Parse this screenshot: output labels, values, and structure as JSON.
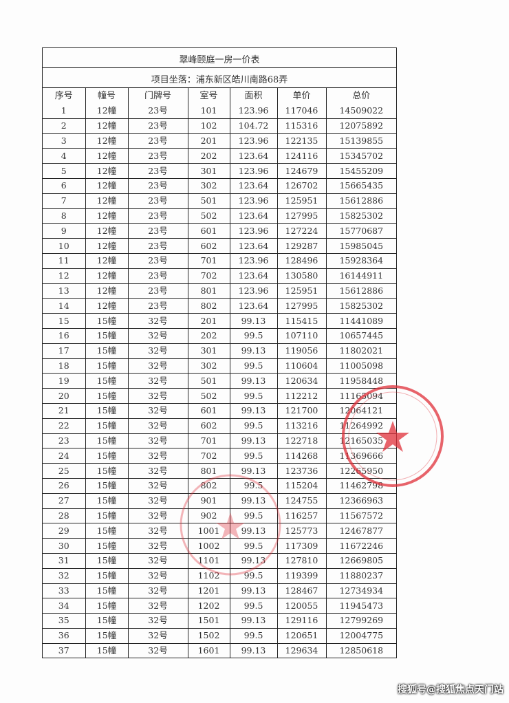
{
  "document": {
    "title": "翠峰颐庭一房一价表",
    "location": "项目坐落：浦东新区皓川南路68弄",
    "columns": [
      "序号",
      "幢号",
      "门牌号",
      "室号",
      "面积",
      "单价",
      "总价"
    ],
    "rows": [
      [
        "1",
        "12幢",
        "23号",
        "101",
        "123.96",
        "117046",
        "14509022"
      ],
      [
        "2",
        "12幢",
        "23号",
        "102",
        "104.72",
        "115316",
        "12075892"
      ],
      [
        "3",
        "12幢",
        "23号",
        "201",
        "123.96",
        "122135",
        "15139855"
      ],
      [
        "4",
        "12幢",
        "23号",
        "202",
        "123.64",
        "124116",
        "15345702"
      ],
      [
        "5",
        "12幢",
        "23号",
        "301",
        "123.96",
        "124679",
        "15455209"
      ],
      [
        "6",
        "12幢",
        "23号",
        "302",
        "123.64",
        "126702",
        "15665435"
      ],
      [
        "7",
        "12幢",
        "23号",
        "501",
        "123.96",
        "125951",
        "15612886"
      ],
      [
        "8",
        "12幢",
        "23号",
        "502",
        "123.64",
        "127995",
        "15825302"
      ],
      [
        "9",
        "12幢",
        "23号",
        "601",
        "123.96",
        "127224",
        "15770687"
      ],
      [
        "10",
        "12幢",
        "23号",
        "602",
        "123.64",
        "129287",
        "15985045"
      ],
      [
        "11",
        "12幢",
        "23号",
        "701",
        "123.96",
        "128496",
        "15928364"
      ],
      [
        "12",
        "12幢",
        "23号",
        "702",
        "123.64",
        "130580",
        "16144911"
      ],
      [
        "13",
        "12幢",
        "23号",
        "801",
        "123.96",
        "125951",
        "15612886"
      ],
      [
        "14",
        "12幢",
        "23号",
        "802",
        "123.64",
        "127995",
        "15825302"
      ],
      [
        "15",
        "15幢",
        "32号",
        "201",
        "99.13",
        "115415",
        "11441089"
      ],
      [
        "16",
        "15幢",
        "32号",
        "202",
        "99.5",
        "107110",
        "10657445"
      ],
      [
        "17",
        "15幢",
        "32号",
        "301",
        "99.13",
        "119056",
        "11802021"
      ],
      [
        "18",
        "15幢",
        "32号",
        "302",
        "99.5",
        "110604",
        "11005098"
      ],
      [
        "19",
        "15幢",
        "32号",
        "501",
        "99.13",
        "120634",
        "11958448"
      ],
      [
        "20",
        "15幢",
        "32号",
        "502",
        "99.5",
        "112212",
        "11165094"
      ],
      [
        "21",
        "15幢",
        "32号",
        "601",
        "99.13",
        "121700",
        "12064121"
      ],
      [
        "22",
        "15幢",
        "32号",
        "602",
        "99.5",
        "113216",
        "11264992"
      ],
      [
        "23",
        "15幢",
        "32号",
        "701",
        "99.13",
        "122718",
        "12165035"
      ],
      [
        "24",
        "15幢",
        "32号",
        "702",
        "99.5",
        "114268",
        "11369666"
      ],
      [
        "25",
        "15幢",
        "32号",
        "801",
        "99.13",
        "123736",
        "12265950"
      ],
      [
        "26",
        "15幢",
        "32号",
        "802",
        "99.5",
        "115204",
        "11462798"
      ],
      [
        "27",
        "15幢",
        "32号",
        "901",
        "99.13",
        "124755",
        "12366963"
      ],
      [
        "28",
        "15幢",
        "32号",
        "902",
        "99.5",
        "116257",
        "11567572"
      ],
      [
        "29",
        "15幢",
        "32号",
        "1001",
        "99.13",
        "125773",
        "12467877"
      ],
      [
        "30",
        "15幢",
        "32号",
        "1002",
        "99.5",
        "117309",
        "11672246"
      ],
      [
        "31",
        "15幢",
        "32号",
        "1101",
        "99.13",
        "127810",
        "12669805"
      ],
      [
        "32",
        "15幢",
        "32号",
        "1102",
        "99.5",
        "119399",
        "11880237"
      ],
      [
        "33",
        "15幢",
        "32号",
        "1201",
        "99.13",
        "128467",
        "12734934"
      ],
      [
        "34",
        "15幢",
        "32号",
        "1202",
        "99.5",
        "120055",
        "11945473"
      ],
      [
        "35",
        "15幢",
        "32号",
        "1501",
        "99.13",
        "129116",
        "12799269"
      ],
      [
        "36",
        "15幢",
        "32号",
        "1502",
        "99.5",
        "120651",
        "12004775"
      ],
      [
        "37",
        "15幢",
        "32号",
        "1601",
        "99.13",
        "129634",
        "12850618"
      ]
    ]
  },
  "watermark": "搜狐号@搜狐焦点天门站",
  "colors": {
    "stamp": "#e0303a",
    "ink": "#222222"
  }
}
